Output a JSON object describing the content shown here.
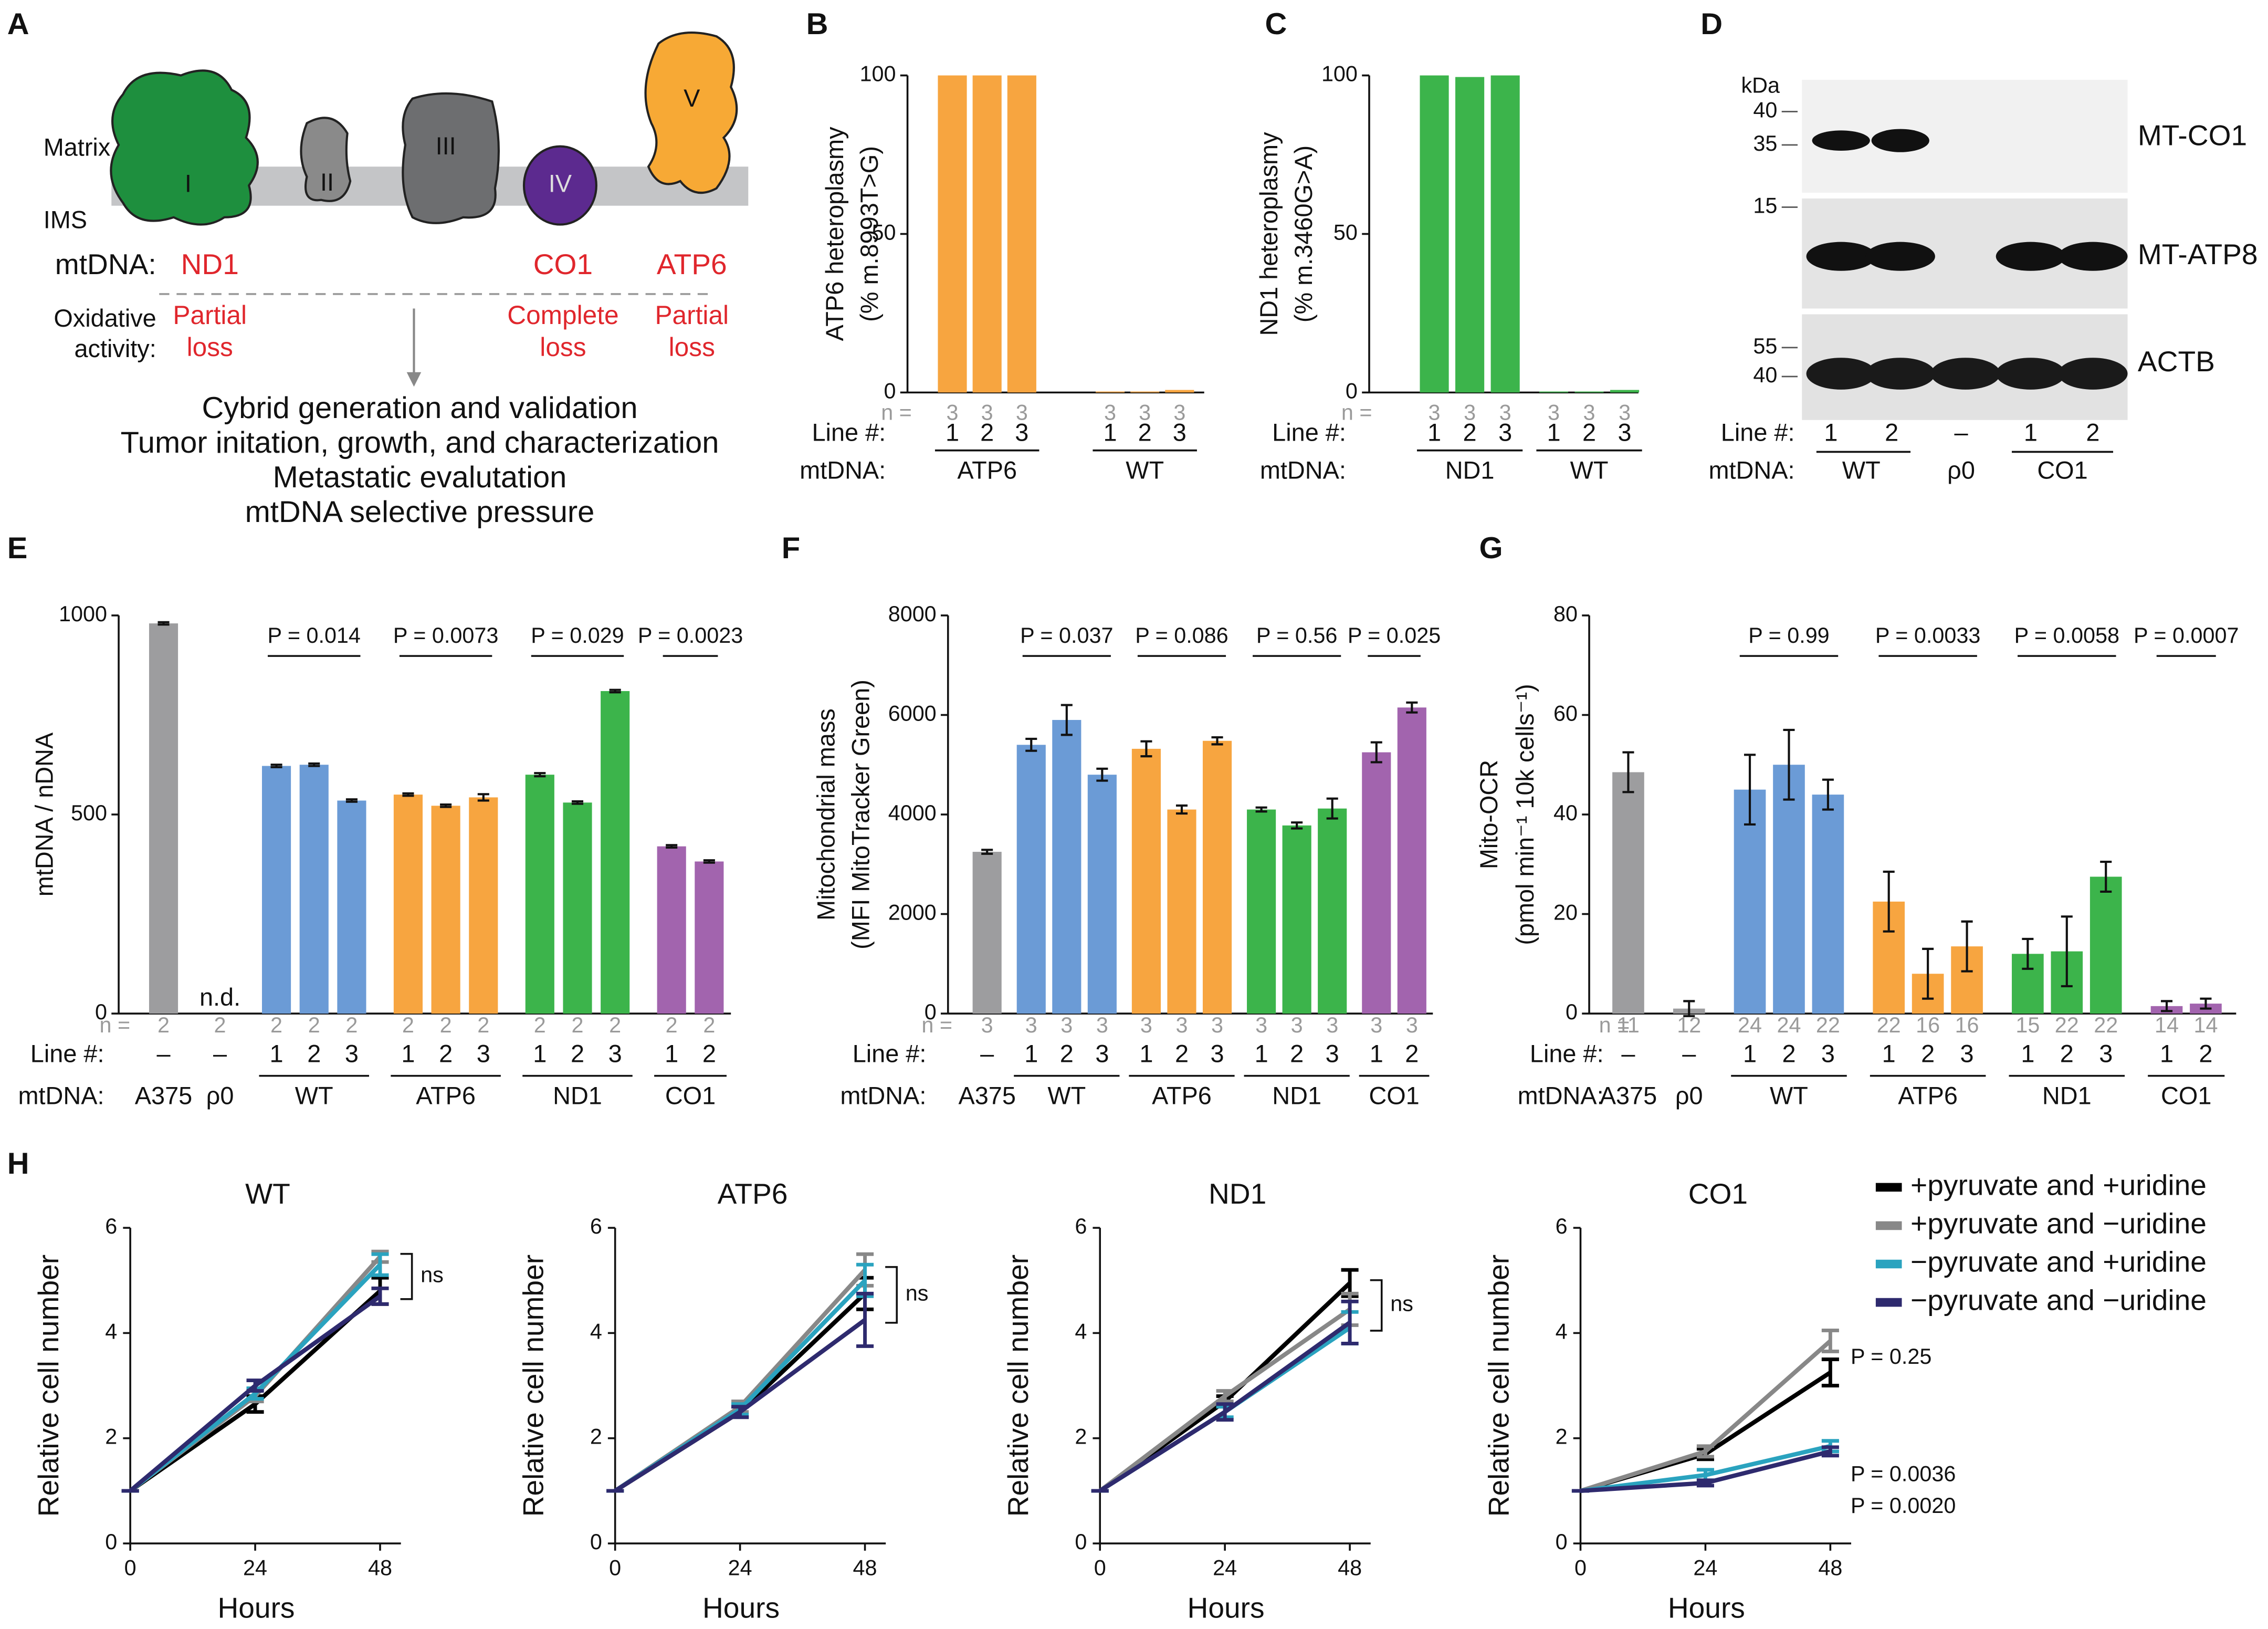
{
  "diagram": {
    "panel": "A",
    "matrix": "Matrix",
    "ims": "IMS",
    "complexes": [
      "I",
      "II",
      "III",
      "IV",
      "V"
    ],
    "mtdna_label": "mtDNA:",
    "genes": [
      "ND1",
      "CO1",
      "ATP6"
    ],
    "activity_label": [
      "Oxidative",
      "activity:"
    ],
    "effects": [
      [
        "Partial",
        "loss"
      ],
      [
        "Complete",
        "loss"
      ],
      [
        "Partial",
        "loss"
      ]
    ],
    "steps": [
      "Cybrid generation and validation",
      "Tumor initation, growth, and characterization",
      "Metastatic evalutation",
      "mtDNA selective pressure"
    ]
  },
  "blot": {
    "panel": "D",
    "unit": "kDa",
    "markers": [
      40,
      35,
      15,
      55,
      40
    ],
    "proteins": [
      "MT-CO1",
      "MT-ATP8",
      "ACTB"
    ],
    "row_label": "Line #:",
    "lines": [
      "1",
      "2",
      "–",
      "1",
      "2"
    ],
    "mtdna_label": "mtDNA:",
    "groups": [
      "WT",
      "ρ0",
      "CO1"
    ]
  },
  "chart_data": [
    {
      "type": "bar",
      "panel": "B",
      "ylabel": [
        "ATP6 heteroplasmy",
        "(% m.8993T>G)"
      ],
      "ylim": [
        0,
        100
      ],
      "yticks": [
        0,
        50,
        100
      ],
      "row_labels": {
        "n": "n =",
        "line": "Line #:",
        "mtdna": "mtDNA:"
      },
      "groups": [
        {
          "label": "ATP6",
          "color": "#f7a540",
          "lines": [
            "1",
            "2",
            "3"
          ],
          "n": [
            3,
            3,
            3
          ],
          "values": [
            100,
            100,
            100
          ]
        },
        {
          "label": "WT",
          "color": "#f7a540",
          "lines": [
            "1",
            "2",
            "3"
          ],
          "n": [
            3,
            3,
            3
          ],
          "values": [
            0.3,
            0.3,
            0.8
          ]
        }
      ]
    },
    {
      "type": "bar",
      "panel": "C",
      "ylabel": [
        "ND1 heteroplasmy",
        "(% m.3460G>A)"
      ],
      "ylim": [
        0,
        100
      ],
      "yticks": [
        0,
        50,
        100
      ],
      "row_labels": {
        "n": "n =",
        "line": "Line #:",
        "mtdna": "mtDNA:"
      },
      "groups": [
        {
          "label": "ND1",
          "color": "#3cb44b",
          "lines": [
            "1",
            "2",
            "3"
          ],
          "n": [
            3,
            3,
            3
          ],
          "values": [
            100,
            99.5,
            100
          ]
        },
        {
          "label": "WT",
          "color": "#3cb44b",
          "lines": [
            "1",
            "2",
            "3"
          ],
          "n": [
            3,
            3,
            3
          ],
          "values": [
            0.3,
            0.3,
            0.8
          ]
        }
      ]
    },
    {
      "type": "bar",
      "panel": "E",
      "ylabel": [
        "mtDNA / nDNA"
      ],
      "ylim": [
        0,
        1000
      ],
      "yticks": [
        0,
        500,
        1000
      ],
      "row_labels": {
        "n": "n =",
        "line": "Line #:",
        "mtdna": "mtDNA:"
      },
      "groups": [
        {
          "label": "A375",
          "color": "#9d9d9f",
          "lines": [
            "–"
          ],
          "n": [
            2
          ],
          "values": [
            980
          ],
          "errors": [
            3
          ]
        },
        {
          "label": "ρ0",
          "color": "#9d9d9f",
          "lines": [
            "–"
          ],
          "n": [
            2
          ],
          "values": [
            null
          ],
          "value_labels": [
            "n.d."
          ]
        },
        {
          "label": "WT",
          "color": "#6b9bd6",
          "lines": [
            "1",
            "2",
            "3"
          ],
          "n": [
            2,
            2,
            2
          ],
          "values": [
            622,
            625,
            535
          ],
          "errors": [
            3,
            3,
            3
          ],
          "p": "P = 0.014"
        },
        {
          "label": "ATP6",
          "color": "#f7a540",
          "lines": [
            "1",
            "2",
            "3"
          ],
          "n": [
            2,
            2,
            2
          ],
          "values": [
            550,
            522,
            543
          ],
          "errors": [
            3,
            3,
            8
          ],
          "p": "P = 0.0073"
        },
        {
          "label": "ND1",
          "color": "#3cb44b",
          "lines": [
            "1",
            "2",
            "3"
          ],
          "n": [
            2,
            2,
            2
          ],
          "values": [
            600,
            530,
            810
          ],
          "errors": [
            4,
            3,
            3
          ],
          "p": "P = 0.029"
        },
        {
          "label": "CO1",
          "color": "#a264ae",
          "lines": [
            "1",
            "2"
          ],
          "n": [
            2,
            2
          ],
          "values": [
            420,
            382
          ],
          "errors": [
            3,
            3
          ],
          "p": "P = 0.0023"
        }
      ]
    },
    {
      "type": "bar",
      "panel": "F",
      "ylabel": [
        "Mitochondrial mass",
        "(MFI MitoTracker Green)"
      ],
      "ylim": [
        0,
        8000
      ],
      "yticks": [
        0,
        2000,
        4000,
        6000,
        8000
      ],
      "row_labels": {
        "n": "n =",
        "line": "Line #:",
        "mtdna": "mtDNA:"
      },
      "groups": [
        {
          "label": "A375",
          "color": "#9d9d9f",
          "lines": [
            "–"
          ],
          "n": [
            3
          ],
          "values": [
            3250
          ],
          "errors": [
            40
          ]
        },
        {
          "label": "WT",
          "color": "#6b9bd6",
          "lines": [
            "1",
            "2",
            "3"
          ],
          "n": [
            3,
            3,
            3
          ],
          "values": [
            5400,
            5900,
            4800
          ],
          "errors": [
            120,
            300,
            120
          ],
          "p": "P = 0.037"
        },
        {
          "label": "ATP6",
          "color": "#f7a540",
          "lines": [
            "1",
            "2",
            "3"
          ],
          "n": [
            3,
            3,
            3
          ],
          "values": [
            5320,
            4100,
            5480
          ],
          "errors": [
            150,
            80,
            70
          ],
          "p": "P = 0.086"
        },
        {
          "label": "ND1",
          "color": "#3cb44b",
          "lines": [
            "1",
            "2",
            "3"
          ],
          "n": [
            3,
            3,
            3
          ],
          "values": [
            4100,
            3780,
            4120
          ],
          "errors": [
            40,
            60,
            200
          ],
          "p": "P = 0.56"
        },
        {
          "label": "CO1",
          "color": "#a264ae",
          "lines": [
            "1",
            "2"
          ],
          "n": [
            3,
            3
          ],
          "values": [
            5250,
            6150
          ],
          "errors": [
            200,
            100
          ],
          "p": "P = 0.025"
        }
      ]
    },
    {
      "type": "bar",
      "panel": "G",
      "ylabel": [
        "Mito-OCR",
        "(pmol min⁻¹ 10k cells⁻¹)"
      ],
      "ylim": [
        0,
        80
      ],
      "yticks": [
        0,
        20,
        40,
        60,
        80
      ],
      "row_labels": {
        "n": "n =",
        "line": "Line #:",
        "mtdna": "mtDNA:"
      },
      "groups": [
        {
          "label": "A375",
          "color": "#9d9d9f",
          "lines": [
            "–"
          ],
          "n": [
            11
          ],
          "values": [
            48.5
          ],
          "errors": [
            4
          ]
        },
        {
          "label": "ρ0",
          "color": "#9d9d9f",
          "lines": [
            "–"
          ],
          "n": [
            12
          ],
          "values": [
            1
          ],
          "errors": [
            1.5
          ]
        },
        {
          "label": "WT",
          "color": "#6b9bd6",
          "lines": [
            "1",
            "2",
            "3"
          ],
          "n": [
            24,
            24,
            22
          ],
          "values": [
            45,
            50,
            44
          ],
          "errors": [
            7,
            7,
            3
          ],
          "p": "P = 0.99"
        },
        {
          "label": "ATP6",
          "color": "#f7a540",
          "lines": [
            "1",
            "2",
            "3"
          ],
          "n": [
            22,
            16,
            16
          ],
          "values": [
            22.5,
            8,
            13.5
          ],
          "errors": [
            6,
            5,
            5
          ],
          "p": "P = 0.0033"
        },
        {
          "label": "ND1",
          "color": "#3cb44b",
          "lines": [
            "1",
            "2",
            "3"
          ],
          "n": [
            15,
            22,
            22
          ],
          "values": [
            12,
            12.5,
            27.5
          ],
          "errors": [
            3,
            7,
            3
          ],
          "p": "P = 0.0058"
        },
        {
          "label": "CO1",
          "color": "#a264ae",
          "lines": [
            "1",
            "2"
          ],
          "n": [
            14,
            14
          ],
          "values": [
            1.5,
            2
          ],
          "errors": [
            1,
            1
          ],
          "p": "P = 0.0007"
        }
      ]
    },
    {
      "type": "line",
      "panel": "H",
      "title": "WT",
      "ylabel": "Relative cell number",
      "xlabel": "Hours",
      "x": [
        0,
        24,
        48
      ],
      "xlim": [
        0,
        52
      ],
      "xticks": [
        0,
        24,
        48
      ],
      "ylim": [
        0,
        6
      ],
      "yticks": [
        0,
        2,
        4,
        6
      ],
      "annotations": [
        "ns"
      ],
      "series": [
        {
          "name": "+pyruvate and +uridine",
          "color": "#000000",
          "values": [
            1,
            2.65,
            4.8
          ],
          "errors": [
            0,
            0.15,
            0.25
          ]
        },
        {
          "name": "+pyruvate and −uridine",
          "color": "#888888",
          "values": [
            1,
            2.8,
            5.45
          ],
          "errors": [
            0,
            0.1,
            0.1
          ]
        },
        {
          "name": "−pyruvate and +uridine",
          "color": "#2aa3bf",
          "values": [
            1,
            2.85,
            5.3
          ],
          "errors": [
            0,
            0.1,
            0.2
          ]
        },
        {
          "name": "−pyruvate and −uridine",
          "color": "#2e2a6e",
          "values": [
            1,
            3.0,
            4.7
          ],
          "errors": [
            0,
            0.1,
            0.15
          ]
        }
      ]
    },
    {
      "type": "line",
      "title": "ATP6",
      "ylabel": "Relative cell number",
      "xlabel": "Hours",
      "x": [
        0,
        24,
        48
      ],
      "xlim": [
        0,
        52
      ],
      "xticks": [
        0,
        24,
        48
      ],
      "ylim": [
        0,
        6
      ],
      "yticks": [
        0,
        2,
        4,
        6
      ],
      "annotations": [
        "ns"
      ],
      "series": [
        {
          "name": "+pyruvate and +uridine",
          "color": "#000000",
          "values": [
            1,
            2.5,
            4.75
          ],
          "errors": [
            0,
            0.1,
            0.3
          ]
        },
        {
          "name": "+pyruvate and −uridine",
          "color": "#888888",
          "values": [
            1,
            2.6,
            5.2
          ],
          "errors": [
            0,
            0.1,
            0.3
          ]
        },
        {
          "name": "−pyruvate and +uridine",
          "color": "#2aa3bf",
          "values": [
            1,
            2.55,
            5.0
          ],
          "errors": [
            0,
            0.1,
            0.3
          ]
        },
        {
          "name": "−pyruvate and −uridine",
          "color": "#2e2a6e",
          "values": [
            1,
            2.5,
            4.25
          ],
          "errors": [
            0,
            0.1,
            0.5
          ]
        }
      ]
    },
    {
      "type": "line",
      "title": "ND1",
      "ylabel": "Relative cell number",
      "xlabel": "Hours",
      "x": [
        0,
        24,
        48
      ],
      "xlim": [
        0,
        52
      ],
      "xticks": [
        0,
        24,
        48
      ],
      "ylim": [
        0,
        6
      ],
      "yticks": [
        0,
        2,
        4,
        6
      ],
      "annotations": [
        "ns"
      ],
      "series": [
        {
          "name": "+pyruvate and +uridine",
          "color": "#000000",
          "values": [
            1,
            2.7,
            4.95
          ],
          "errors": [
            0,
            0.1,
            0.25
          ]
        },
        {
          "name": "+pyruvate and −uridine",
          "color": "#888888",
          "values": [
            1,
            2.8,
            4.45
          ],
          "errors": [
            0,
            0.1,
            0.3
          ]
        },
        {
          "name": "−pyruvate and +uridine",
          "color": "#2aa3bf",
          "values": [
            1,
            2.5,
            4.1
          ],
          "errors": [
            0,
            0.1,
            0.3
          ]
        },
        {
          "name": "−pyruvate and −uridine",
          "color": "#2e2a6e",
          "values": [
            1,
            2.5,
            4.2
          ],
          "errors": [
            0,
            0.15,
            0.4
          ]
        }
      ]
    },
    {
      "type": "line",
      "title": "CO1",
      "ylabel": "Relative cell number",
      "xlabel": "Hours",
      "x": [
        0,
        24,
        48
      ],
      "xlim": [
        0,
        52
      ],
      "xticks": [
        0,
        24,
        48
      ],
      "ylim": [
        0,
        6
      ],
      "yticks": [
        0,
        2,
        4,
        6
      ],
      "annotations": [
        "P = 0.25",
        "P = 0.0036",
        "P = 0.0020"
      ],
      "legend": true,
      "series": [
        {
          "name": "+pyruvate and +uridine",
          "color": "#000000",
          "values": [
            1,
            1.7,
            3.25
          ],
          "errors": [
            0,
            0.1,
            0.25
          ]
        },
        {
          "name": "+pyruvate and −uridine",
          "color": "#888888",
          "values": [
            1,
            1.75,
            3.85
          ],
          "errors": [
            0,
            0.1,
            0.2
          ]
        },
        {
          "name": "−pyruvate and +uridine",
          "color": "#2aa3bf",
          "values": [
            1,
            1.3,
            1.85
          ],
          "errors": [
            0,
            0.1,
            0.1
          ]
        },
        {
          "name": "−pyruvate and −uridine",
          "color": "#2e2a6e",
          "values": [
            1,
            1.15,
            1.75
          ],
          "errors": [
            0,
            0.05,
            0.08
          ]
        }
      ]
    }
  ]
}
